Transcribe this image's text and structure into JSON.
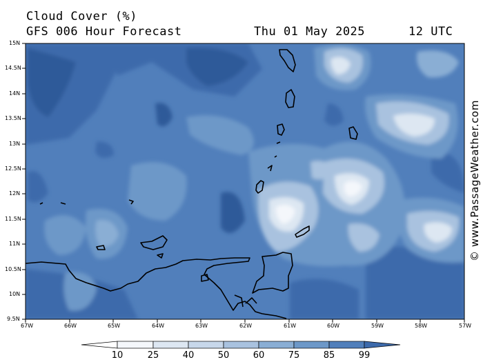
{
  "header": {
    "title": "Cloud Cover (%)",
    "subtitle": "GFS 006 Hour Forecast",
    "date": "Thu 01 May 2025",
    "time": "12 UTC"
  },
  "copyright": "© www.PassageWeather.com",
  "lat_labels": [
    "15N",
    "14.5N",
    "14N",
    "13.5N",
    "13N",
    "12.5N",
    "12N",
    "11.5N",
    "11N",
    "10.5N",
    "10N",
    "9.5N"
  ],
  "lon_labels": [
    "67W",
    "66W",
    "65W",
    "64W",
    "63W",
    "62W",
    "61W",
    "60W",
    "59W",
    "58W",
    "57W"
  ],
  "colorbar": {
    "ticks": [
      "10",
      "25",
      "40",
      "50",
      "60",
      "75",
      "85",
      "99"
    ],
    "colors": [
      "#f4f7fb",
      "#dde7f2",
      "#c7d7ea",
      "#a9c2df",
      "#8aaed4",
      "#6d98c8",
      "#517fbb",
      "#3d6aab",
      "#2e5a99"
    ]
  },
  "palette": {
    "frame": "#000000",
    "coast": "#000000"
  }
}
